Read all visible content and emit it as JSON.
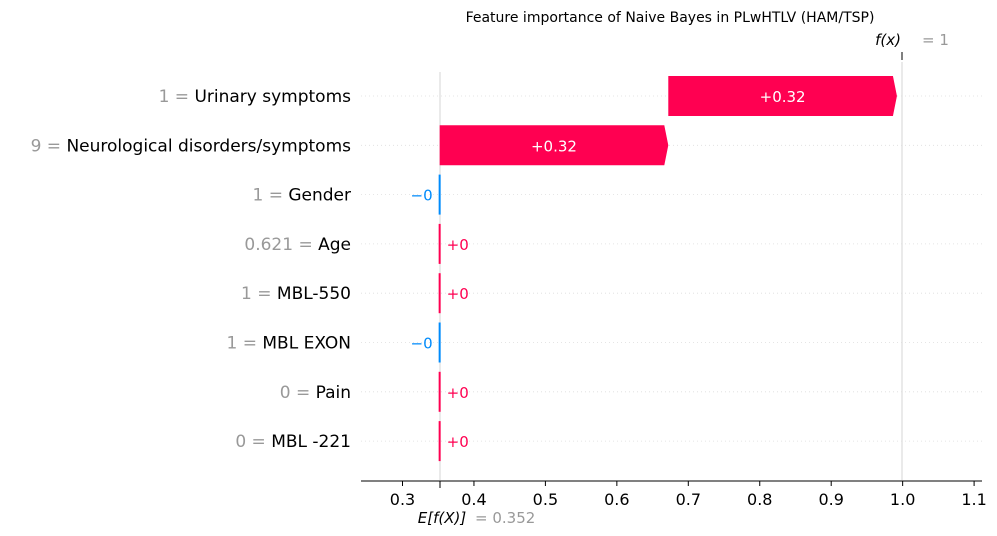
{
  "chart_data": {
    "type": "waterfall",
    "title": "Feature importance of Naive Bayes in PLwHTLV (HAM/TSP)",
    "fx_label": "f(x)",
    "fx_value_text": "= 1",
    "fx_value": 1,
    "base_label": "E[f(X)]",
    "base_value_text": "= 0.352",
    "base_value": 0.352,
    "xlim": [
      0.24,
      1.11
    ],
    "xticks": [
      "0.3",
      "0.4",
      "0.5",
      "0.6",
      "0.7",
      "0.8",
      "0.9",
      "1.0",
      "1.1"
    ],
    "colors": {
      "positive": "#ff0051",
      "negative": "#008bfb",
      "grid": "#cccccc"
    },
    "features": [
      {
        "value": "1",
        "name": "Urinary symptoms",
        "contribution": 0.32,
        "label": "+0.32"
      },
      {
        "value": "9",
        "name": "Neurological disorders/symptoms",
        "contribution": 0.32,
        "label": "+0.32"
      },
      {
        "value": "1",
        "name": "Gender",
        "contribution": -0.0,
        "label": "−0"
      },
      {
        "value": "0.621",
        "name": "Age",
        "contribution": 0.0,
        "label": "+0"
      },
      {
        "value": "1",
        "name": "MBL-550",
        "contribution": 0.0,
        "label": "+0"
      },
      {
        "value": "1",
        "name": "MBL EXON",
        "contribution": -0.0,
        "label": "−0"
      },
      {
        "value": "0",
        "name": "Pain",
        "contribution": 0.0,
        "label": "+0"
      },
      {
        "value": "0",
        "name": "MBL -221",
        "contribution": 0.0,
        "label": "+0"
      }
    ]
  }
}
